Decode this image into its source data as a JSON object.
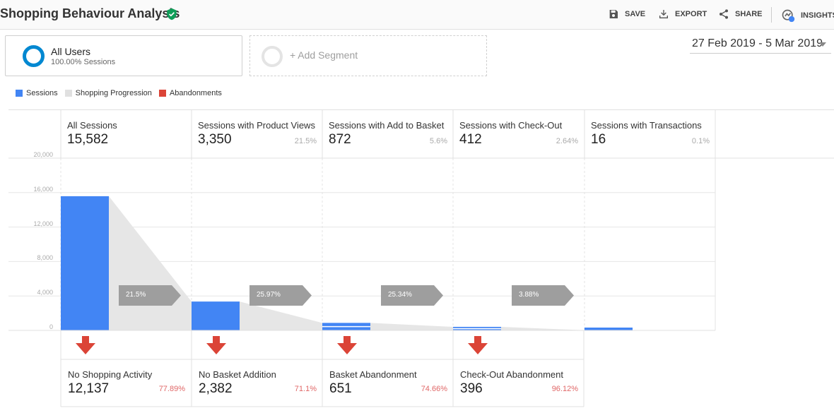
{
  "header": {
    "title": "Shopping Behaviour Analysis",
    "save_label": "SAVE",
    "export_label": "EXPORT",
    "share_label": "SHARE",
    "insights_label": "INSIGHTS"
  },
  "segments": {
    "primary": {
      "name": "All Users",
      "sub": "100.00% Sessions"
    },
    "add_label": "+ Add Segment"
  },
  "date_range": "27 Feb 2019 - 5 Mar 2019",
  "legend": [
    {
      "label": "Sessions",
      "color": "#4285f4"
    },
    {
      "label": "Shopping Progression",
      "color": "#e0e0e0"
    },
    {
      "label": "Abandonments",
      "color": "#db4437"
    }
  ],
  "stages": [
    {
      "name": "All Sessions",
      "value": "15,582",
      "pct": ""
    },
    {
      "name": "Sessions with Product Views",
      "value": "3,350",
      "pct": "21.5%"
    },
    {
      "name": "Sessions with Add to Basket",
      "value": "872",
      "pct": "5.6%"
    },
    {
      "name": "Sessions with Check-Out",
      "value": "412",
      "pct": "2.64%"
    },
    {
      "name": "Sessions with Transactions",
      "value": "16",
      "pct": "0.1%"
    }
  ],
  "progress_chips": [
    "21.5%",
    "25.97%",
    "25.34%",
    "3.88%"
  ],
  "abandonments": [
    {
      "name": "No Shopping Activity",
      "value": "12,137",
      "pct": "77.89%"
    },
    {
      "name": "No Basket Addition",
      "value": "2,382",
      "pct": "71.1%"
    },
    {
      "name": "Basket Abandonment",
      "value": "651",
      "pct": "74.66%"
    },
    {
      "name": "Check-Out Abandonment",
      "value": "396",
      "pct": "96.12%"
    }
  ],
  "chart_data": {
    "type": "bar",
    "categories": [
      "All Sessions",
      "Sessions with Product Views",
      "Sessions with Add to Basket",
      "Sessions with Check-Out",
      "Sessions with Transactions"
    ],
    "series": [
      {
        "name": "Sessions",
        "values": [
          15582,
          3350,
          872,
          412,
          16
        ]
      }
    ],
    "y_ticks": [
      "0",
      "4,000",
      "8,000",
      "12,000",
      "16,000",
      "20,000"
    ],
    "ylim": [
      0,
      20000
    ]
  }
}
